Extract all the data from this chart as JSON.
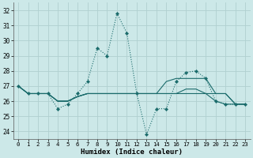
{
  "xlabel": "Humidex (Indice chaleur)",
  "xlim": [
    -0.5,
    23.5
  ],
  "ylim": [
    23.5,
    32.5
  ],
  "yticks": [
    24,
    25,
    26,
    27,
    28,
    29,
    30,
    31,
    32
  ],
  "xticks": [
    0,
    1,
    2,
    3,
    4,
    5,
    6,
    7,
    8,
    9,
    10,
    11,
    12,
    13,
    14,
    15,
    16,
    17,
    18,
    19,
    20,
    21,
    22,
    23
  ],
  "bg_color": "#cce8e8",
  "grid_color": "#b0d0d0",
  "line_color": "#1a6b6b",
  "line1_dotted": [
    27.0,
    26.5,
    26.5,
    26.5,
    25.5,
    25.8,
    26.5,
    27.3,
    29.5,
    29.0,
    31.8,
    30.5,
    26.5,
    23.8,
    25.5,
    25.5,
    27.3,
    27.9,
    28.0,
    27.5,
    26.0,
    25.8,
    25.8,
    25.8
  ],
  "line2": [
    27.0,
    26.5,
    26.5,
    26.5,
    26.0,
    26.0,
    26.3,
    26.5,
    26.5,
    26.5,
    26.5,
    26.5,
    26.5,
    26.5,
    26.5,
    27.3,
    27.5,
    27.5,
    27.5,
    27.5,
    26.5,
    26.5,
    25.8,
    25.8
  ],
  "line3": [
    27.0,
    26.5,
    26.5,
    26.5,
    26.0,
    26.0,
    26.3,
    26.5,
    26.5,
    26.5,
    26.5,
    26.5,
    26.5,
    26.5,
    26.5,
    26.5,
    26.5,
    26.8,
    26.8,
    26.5,
    26.0,
    25.8,
    25.8,
    25.8
  ],
  "line4": [
    27.0,
    26.5,
    26.5,
    26.5,
    26.0,
    26.0,
    26.3,
    26.5,
    26.5,
    26.5,
    26.5,
    26.5,
    26.5,
    26.5,
    26.5,
    26.5,
    26.5,
    26.5,
    26.5,
    26.5,
    26.5,
    26.5,
    25.8,
    25.8
  ]
}
